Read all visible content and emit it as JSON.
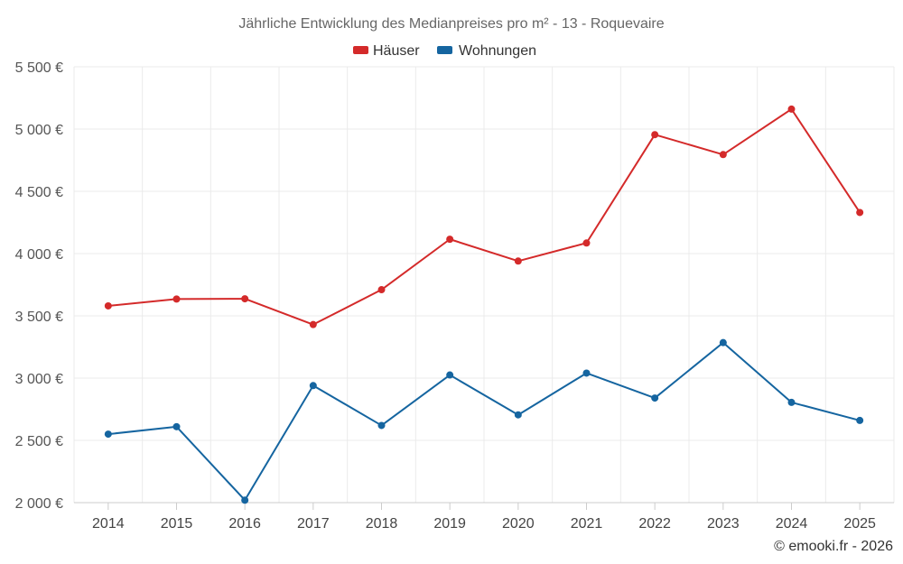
{
  "chart_data": {
    "type": "line",
    "title": "Jährliche Entwicklung des Medianpreises pro m² - 13 - Roquevaire",
    "categories": [
      "2014",
      "2015",
      "2016",
      "2017",
      "2018",
      "2019",
      "2020",
      "2021",
      "2022",
      "2023",
      "2024",
      "2025"
    ],
    "series": [
      {
        "name": "Häuser",
        "color": "#d42a2a",
        "values": [
          3580,
          3635,
          3637,
          3430,
          3710,
          4115,
          3940,
          4085,
          4955,
          4795,
          5160,
          4330
        ]
      },
      {
        "name": "Wohnungen",
        "color": "#1565a0",
        "values": [
          2550,
          2610,
          2020,
          2940,
          2620,
          3025,
          2705,
          3040,
          2840,
          3285,
          2805,
          2660
        ]
      }
    ],
    "ylim": [
      2000,
      5500
    ],
    "yticks": [
      2000,
      2500,
      3000,
      3500,
      4000,
      4500,
      5000,
      5500
    ],
    "ytick_labels": [
      "2 000 €",
      "2 500 €",
      "3 000 €",
      "3 500 €",
      "4 000 €",
      "4 500 €",
      "5 000 €",
      "5 500 €"
    ],
    "xlabel": "",
    "ylabel": "",
    "grid": true,
    "legend": "top-center"
  },
  "credit": "© emooki.fr - 2026"
}
